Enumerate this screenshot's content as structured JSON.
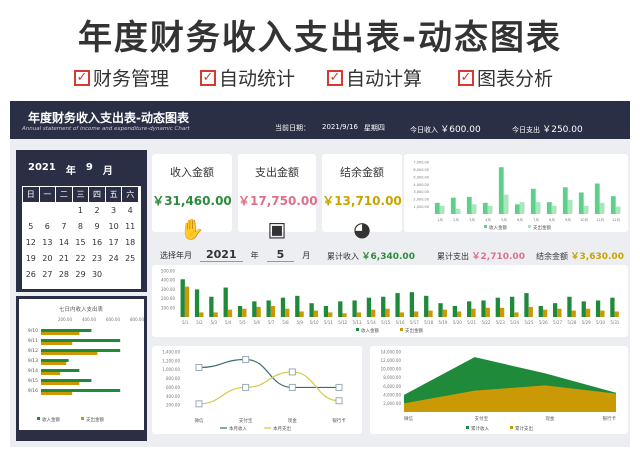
{
  "banner": {
    "title": "年度财务收入支出表-动态图表",
    "features": [
      "财务管理",
      "自动统计",
      "自动计算",
      "图表分析"
    ],
    "check_icon": "checkbox-checked-icon"
  },
  "header": {
    "title": "年度财务收入支出表-动态图表",
    "subtitle": "Annual statement of income and expenditure-dynamic Chart",
    "date_label": "当前日期：",
    "date": "2021/9/16",
    "weekday": "星期四",
    "today_income_label": "今日收入",
    "today_income": "￥600.00",
    "today_expense_label": "今日支出",
    "today_expense": "￥250.00"
  },
  "calendar": {
    "year": "2021",
    "year_unit": "年",
    "month": "9",
    "month_unit": "月",
    "weekdays": [
      "日",
      "一",
      "二",
      "三",
      "四",
      "五",
      "六"
    ],
    "weeks": [
      [
        "",
        "",
        "",
        "1",
        "2",
        "3",
        "4"
      ],
      [
        "5",
        "6",
        "7",
        "8",
        "9",
        "10",
        "11"
      ],
      [
        "12",
        "13",
        "14",
        "15",
        "16",
        "17",
        "18"
      ],
      [
        "19",
        "20",
        "21",
        "22",
        "23",
        "24",
        "25"
      ],
      [
        "26",
        "27",
        "28",
        "29",
        "30",
        "",
        ""
      ]
    ]
  },
  "kpis": [
    {
      "label": "收入金额",
      "value": "￥31,460.00",
      "color": "#2e8b3e",
      "icon": "hand-coins-icon"
    },
    {
      "label": "支出金额",
      "value": "￥17,750.00",
      "color": "#e0708a",
      "icon": "wallet-icon"
    },
    {
      "label": "结余金额",
      "value": "￥13,710.00",
      "color": "#c9a400",
      "icon": "pie-chart-icon"
    }
  ],
  "selector": {
    "label": "选择年月",
    "year": "2021",
    "year_unit": "年",
    "month": "5",
    "month_unit": "月",
    "cum_income_label": "累计收入",
    "cum_income": "￥6,340.00",
    "cum_expense_label": "累计支出",
    "cum_expense": "￥2,710.00",
    "balance_label": "结余金额",
    "balance": "￥3,630.00"
  },
  "colors": {
    "income": "#1f8a3a",
    "expense": "#c99a06",
    "income_light": "#5fd08a",
    "income_pale": "#a8e6bd",
    "header": "#2a2f45"
  },
  "chart_data": [
    {
      "id": "monthly",
      "type": "bar",
      "categories": [
        "1月",
        "2月",
        "3月",
        "4月",
        "5月",
        "6月",
        "7月",
        "8月",
        "9月",
        "10月",
        "11月",
        "12月"
      ],
      "yticks": [
        "1,000.00",
        "2,000.00",
        "3,000.00",
        "4,000.00",
        "5,000.00",
        "6,000.00",
        "7,000.00"
      ],
      "ylim": [
        0,
        7000
      ],
      "series": [
        {
          "name": "收入金额",
          "values": [
            1500,
            2200,
            2300,
            1500,
            6300,
            1300,
            3400,
            1600,
            3600,
            2900,
            4100,
            2400
          ]
        },
        {
          "name": "支出金额",
          "values": [
            1100,
            700,
            1300,
            1100,
            2600,
            1600,
            1600,
            1100,
            1900,
            1100,
            1500,
            1000
          ]
        }
      ],
      "legend": "bottom"
    },
    {
      "id": "daily",
      "type": "bar",
      "categories": [
        "5/1",
        "5/2",
        "5/3",
        "5/4",
        "5/5",
        "5/6",
        "5/7",
        "5/8",
        "5/9",
        "5/10",
        "5/11",
        "5/12",
        "5/13",
        "5/14",
        "5/15",
        "5/16",
        "5/17",
        "5/18",
        "5/19",
        "5/20",
        "5/21",
        "5/22",
        "5/23",
        "5/24",
        "5/25",
        "5/26",
        "5/27",
        "5/28",
        "5/29",
        "5/30",
        "5/31"
      ],
      "yticks": [
        "100.00",
        "200.00",
        "300.00",
        "400.00",
        "500.00"
      ],
      "ylim": [
        0,
        500
      ],
      "series": [
        {
          "name": "收入金额",
          "values": [
            410,
            300,
            220,
            320,
            120,
            170,
            180,
            210,
            230,
            150,
            120,
            170,
            180,
            210,
            220,
            260,
            270,
            230,
            150,
            120,
            170,
            180,
            210,
            220,
            260,
            120,
            150,
            220,
            170,
            180,
            210
          ]
        },
        {
          "name": "支出金额",
          "values": [
            330,
            50,
            50,
            80,
            90,
            110,
            120,
            90,
            60,
            70,
            50,
            40,
            50,
            80,
            90,
            50,
            60,
            70,
            80,
            60,
            90,
            100,
            100,
            50,
            110,
            80,
            90,
            70,
            90,
            70,
            60
          ]
        }
      ],
      "legend": "bottom"
    },
    {
      "id": "seven_day",
      "type": "bar",
      "title": "七日内收入支出表",
      "categories": [
        "9/10",
        "9/11",
        "9/12",
        "9/13",
        "9/14",
        "9/15",
        "9/16"
      ],
      "xticks": [
        "200.00",
        "400.00",
        "600.00",
        "800.00"
      ],
      "xlim": [
        0,
        800
      ],
      "series": [
        {
          "name": "收入金额",
          "values": [
            420,
            660,
            660,
            230,
            320,
            420,
            660
          ]
        },
        {
          "name": "支出金额",
          "values": [
            320,
            260,
            470,
            210,
            160,
            320,
            260
          ]
        }
      ],
      "legend": "bottom"
    },
    {
      "id": "channel_month",
      "type": "line",
      "categories": [
        "微信",
        "支付宝",
        "现金",
        "银行卡"
      ],
      "yticks": [
        "200.00",
        "400.00",
        "600.00",
        "800.00",
        "1,000.00",
        "1,200.00",
        "1,400.00"
      ],
      "ylim": [
        0,
        1400
      ],
      "series": [
        {
          "name": "本月收入",
          "values": [
            1050,
            1230,
            600,
            600
          ]
        },
        {
          "name": "本月支出",
          "values": [
            230,
            600,
            950,
            300
          ]
        }
      ],
      "legend": "bottom"
    },
    {
      "id": "channel_total",
      "type": "area",
      "categories": [
        "微信",
        "支付宝",
        "现金",
        "银行卡"
      ],
      "yticks": [
        "2,000.00",
        "4,000.00",
        "6,000.00",
        "8,000.00",
        "10,000.00",
        "12,000.00",
        "14,000.00"
      ],
      "ylim": [
        0,
        14000
      ],
      "series": [
        {
          "name": "累计收入",
          "values": [
            4000,
            12800,
            9000,
            4500
          ]
        },
        {
          "name": "累计支出",
          "values": [
            2000,
            5000,
            6200,
            4300
          ]
        }
      ],
      "legend": "bottom"
    }
  ]
}
